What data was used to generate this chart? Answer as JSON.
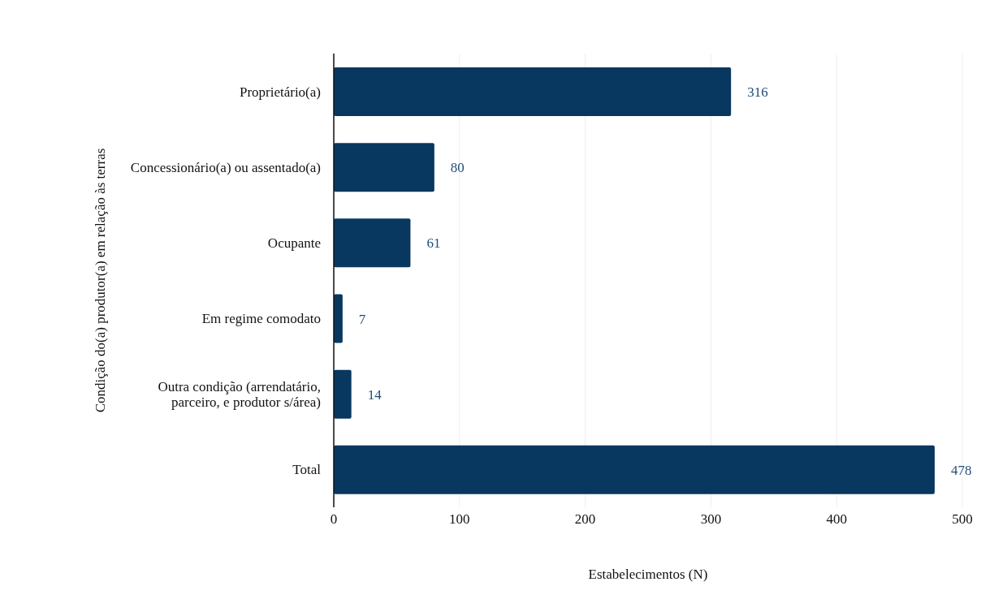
{
  "chart_data": {
    "type": "bar",
    "orientation": "horizontal",
    "xlabel": "Estabelecimentos (N)",
    "ylabel": "Condição do(a) produtor(a) em relação às terras",
    "categories": [
      "Proprietário(a)",
      "Concessionário(a) ou assentado(a)",
      "Ocupante",
      "Em regime comodato",
      "Outra condição (arrendatário, parceiro, e produtor s/área)",
      "Total"
    ],
    "values": [
      316,
      80,
      61,
      7,
      14,
      478
    ],
    "color": "#08375f",
    "xlim": [
      0,
      500
    ],
    "xticks": [
      0,
      100,
      200,
      300,
      400,
      500
    ],
    "grid": "x",
    "data_labels": true,
    "legend": false
  }
}
